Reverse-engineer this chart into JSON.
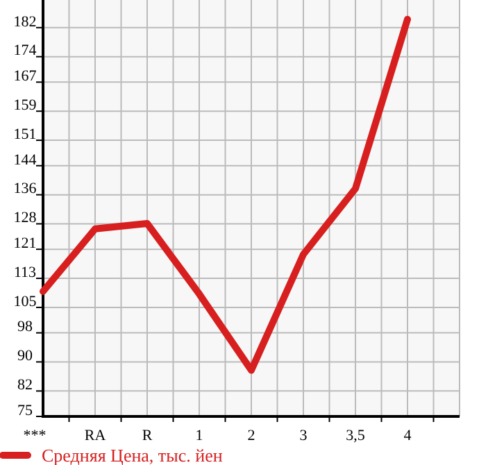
{
  "chart_data": {
    "type": "line",
    "categories": [
      "***",
      "RA",
      "R",
      "1",
      "2",
      "3",
      "3,5",
      "4"
    ],
    "series": [
      {
        "name": "Средняя Цена, тыс. йен",
        "color": "#d71f1f",
        "values": [
          109.4,
          126.6,
          128.1,
          108.7,
          87.7,
          119.6,
          137.7,
          184.3
        ]
      }
    ],
    "ylim": [
      75,
      189.6
    ],
    "yticks": [
      75,
      82,
      90,
      98,
      105,
      113,
      121,
      128,
      136,
      144,
      151,
      159,
      167,
      174,
      182
    ],
    "grid": true,
    "legend": "bottom",
    "marker": "none",
    "line_style": "solid"
  }
}
